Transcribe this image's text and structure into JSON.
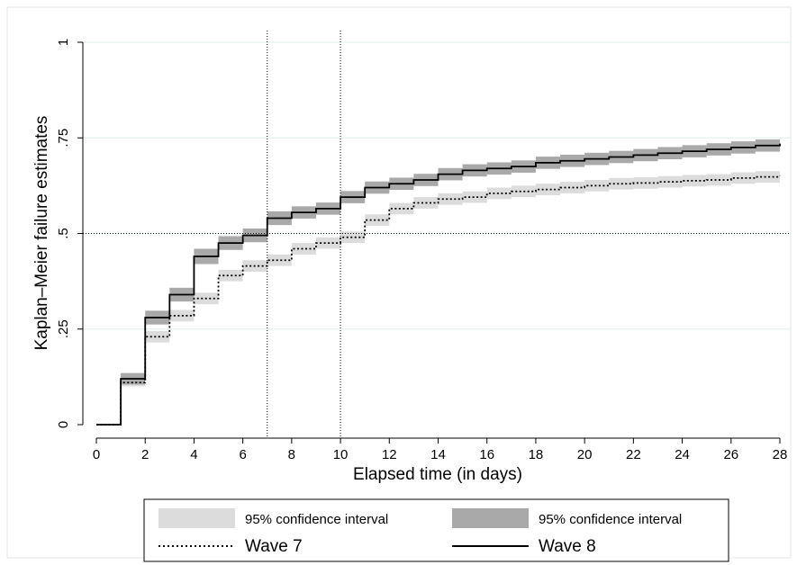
{
  "chart_data": {
    "type": "line",
    "subtype": "kaplan-meier step function with 95% confidence bands",
    "title": "",
    "xlabel": "Elapsed time (in days)",
    "ylabel": "Kaplan–Meier failure estimates",
    "xlim": [
      0,
      28
    ],
    "ylim": [
      0,
      1
    ],
    "x_ticks": [
      0,
      2,
      4,
      6,
      8,
      10,
      12,
      14,
      16,
      18,
      20,
      22,
      24,
      26,
      28
    ],
    "x_tick_labels": [
      "0",
      "2",
      "4",
      "6",
      "8",
      "10",
      "12",
      "14",
      "16",
      "18",
      "20",
      "22",
      "24",
      "26",
      "28"
    ],
    "y_ticks": [
      0,
      0.25,
      0.5,
      0.75,
      1
    ],
    "y_tick_labels": [
      "0",
      ".25",
      ".5",
      ".75",
      "1"
    ],
    "grid": true,
    "reference_lines": {
      "x": [
        7,
        10
      ],
      "y": [
        0.5
      ]
    },
    "legend_position": "bottom",
    "series": [
      {
        "name": "Wave 7",
        "line_style": "dotted",
        "band_color": "#dcdcdc",
        "x": [
          0,
          1,
          2,
          3,
          4,
          5,
          6,
          7,
          8,
          9,
          10,
          11,
          12,
          13,
          14,
          15,
          16,
          17,
          18,
          19,
          20,
          21,
          22,
          23,
          24,
          25,
          26,
          27,
          28
        ],
        "values": [
          0,
          0.11,
          0.23,
          0.285,
          0.33,
          0.39,
          0.415,
          0.43,
          0.46,
          0.475,
          0.49,
          0.535,
          0.565,
          0.58,
          0.59,
          0.595,
          0.605,
          0.61,
          0.615,
          0.62,
          0.625,
          0.63,
          0.632,
          0.635,
          0.638,
          0.64,
          0.645,
          0.648,
          0.65
        ],
        "ci_half_width": [
          0,
          0.01,
          0.015,
          0.015,
          0.015,
          0.015,
          0.015,
          0.015,
          0.015,
          0.015,
          0.015,
          0.015,
          0.015,
          0.015,
          0.015,
          0.015,
          0.015,
          0.015,
          0.015,
          0.015,
          0.015,
          0.015,
          0.015,
          0.015,
          0.015,
          0.015,
          0.015,
          0.015,
          0.015
        ]
      },
      {
        "name": "Wave 8",
        "line_style": "solid",
        "band_color": "#a9a9a9",
        "x": [
          0,
          1,
          2,
          3,
          4,
          5,
          6,
          7,
          8,
          9,
          10,
          11,
          12,
          13,
          14,
          15,
          16,
          17,
          18,
          19,
          20,
          21,
          22,
          23,
          24,
          25,
          26,
          27,
          28
        ],
        "values": [
          0,
          0.12,
          0.28,
          0.34,
          0.44,
          0.475,
          0.495,
          0.54,
          0.555,
          0.565,
          0.595,
          0.62,
          0.63,
          0.64,
          0.655,
          0.665,
          0.67,
          0.675,
          0.685,
          0.69,
          0.695,
          0.7,
          0.705,
          0.71,
          0.715,
          0.72,
          0.725,
          0.73,
          0.735
        ],
        "ci_half_width": [
          0,
          0.015,
          0.018,
          0.018,
          0.02,
          0.018,
          0.018,
          0.018,
          0.016,
          0.016,
          0.016,
          0.016,
          0.016,
          0.016,
          0.016,
          0.016,
          0.016,
          0.016,
          0.016,
          0.016,
          0.016,
          0.016,
          0.016,
          0.016,
          0.016,
          0.016,
          0.016,
          0.016,
          0.016
        ]
      }
    ],
    "legend": {
      "ci_label_left": "95% confidence interval",
      "ci_label_right": "95% confidence interval",
      "series_label_left": "Wave 7",
      "series_label_right": "Wave 8"
    }
  }
}
